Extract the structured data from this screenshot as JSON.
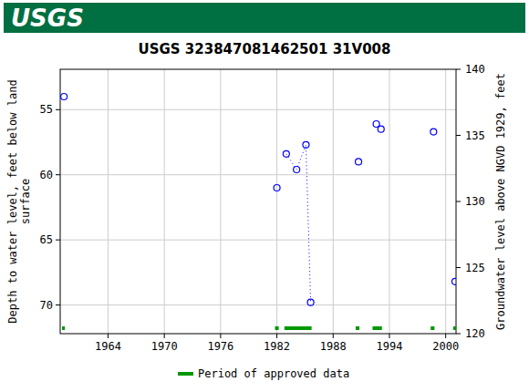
{
  "chart_data": {
    "type": "scatter",
    "title": "USGS 323847081462501 31V008",
    "annotations": [
      "USGS"
    ],
    "y_label": "Depth to water level, feet below land\nsurface",
    "y2_label": "Groundwater level above NGVD 1929, feet",
    "x": [
      1959.3,
      1982.0,
      1983.0,
      1984.1,
      1985.1,
      1985.6,
      1990.7,
      1992.6,
      1993.1,
      1998.7,
      2001.0
    ],
    "series": [
      {
        "color": "#0000ff",
        "marker": "circle",
        "values": [
          54.0,
          61.0,
          58.4,
          59.6,
          57.7,
          69.8,
          59.0,
          56.1,
          56.5,
          56.7,
          68.2
        ]
      },
      {
        "color": "#0000ff",
        "type": "line",
        "line_style": "dotted",
        "values": [
          null,
          null,
          58.4,
          59.6,
          57.7,
          69.8,
          null,
          null,
          null,
          null,
          null
        ]
      }
    ],
    "approved_periods": {
      "name": "Period of approved data",
      "color": "#009900",
      "ranges": [
        [
          1959.1,
          1959.4
        ],
        [
          1981.8,
          1982.2
        ],
        [
          1982.8,
          1985.7
        ],
        [
          1990.4,
          1990.8
        ],
        [
          1992.2,
          1993.2
        ],
        [
          1998.4,
          1998.8
        ],
        [
          2000.8,
          2001.1
        ]
      ]
    },
    "xlim": [
      1958.9,
      2001.1
    ],
    "xticks": [
      1964,
      1970,
      1976,
      1982,
      1988,
      1994,
      2000
    ],
    "ylim": [
      72.2,
      51.9
    ],
    "yticks": [
      55,
      60,
      65,
      70
    ],
    "y2lim": [
      120,
      140
    ],
    "y2ticks": [
      120,
      125,
      130,
      135,
      140
    ],
    "grid": true
  }
}
